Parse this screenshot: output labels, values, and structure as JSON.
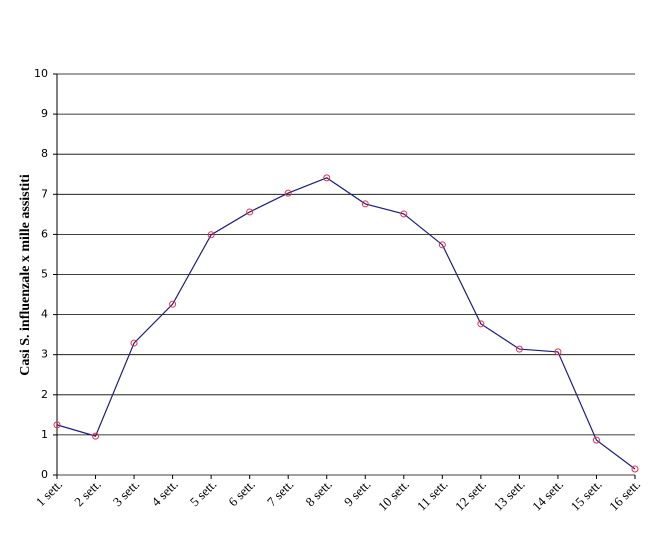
{
  "chart_data": {
    "type": "line",
    "y_label": "Casi S. influenzale x mille assistiti",
    "categories": [
      "1 sett.",
      "2 sett.",
      "3 sett.",
      "4 sett.",
      "5 sett.",
      "6 sett.",
      "7 sett.",
      "8 sett.",
      "9 sett.",
      "10 sett.",
      "11 sett.",
      "12 sett.",
      "13 sett.",
      "14 sett.",
      "15 sett.",
      "16 sett."
    ],
    "series": [
      {
        "color": "#1f1f7a",
        "marker_color": "#e0304a",
        "values": [
          1.25,
          0.97,
          3.29,
          4.26,
          5.99,
          6.56,
          7.03,
          7.41,
          6.76,
          6.51,
          5.74,
          3.77,
          3.14,
          3.07,
          0.87,
          0.15
        ]
      }
    ],
    "ylim": [
      0,
      10
    ],
    "yticks": [
      0,
      1,
      2,
      3,
      4,
      5,
      6,
      7,
      8,
      9,
      10
    ],
    "grid": true
  }
}
